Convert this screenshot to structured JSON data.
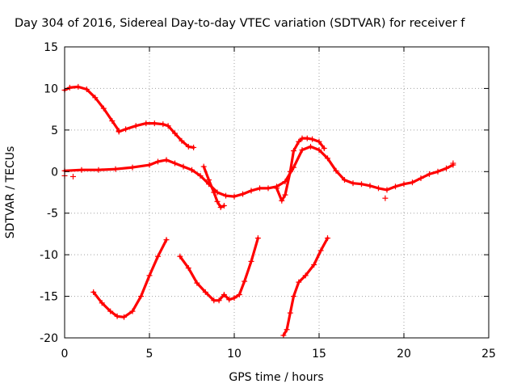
{
  "chart_data": {
    "type": "scatter",
    "title": "Day 304 of 2016, Sidereal Day-to-day VTEC variation (SDTVAR) for receiver f",
    "xlabel": "GPS time / hours",
    "ylabel": "SDTVAR / TECUs",
    "xlim": [
      0,
      25
    ],
    "ylim": [
      -20,
      15
    ],
    "xticks": [
      0,
      5,
      10,
      15,
      20,
      25
    ],
    "yticks": [
      -20,
      -15,
      -10,
      -5,
      0,
      5,
      10,
      15
    ],
    "grid": true,
    "marker": "+",
    "color": "#ff0000",
    "series": [
      {
        "x": [
          0,
          0.3,
          0.8,
          1.3,
          1.8,
          2.3,
          2.8,
          3.2
        ],
        "y": [
          9.8,
          10.1,
          10.2,
          9.9,
          8.9,
          7.6,
          6.1,
          4.9
        ]
      },
      {
        "x": [
          3.2,
          3.6,
          4.2,
          4.8,
          5.3,
          5.8,
          6.1,
          6.5,
          6.9,
          7.3,
          7.6
        ],
        "y": [
          4.8,
          5.1,
          5.5,
          5.8,
          5.8,
          5.7,
          5.5,
          4.6,
          3.7,
          3.0,
          2.9
        ]
      },
      {
        "x": [
          0,
          1,
          2,
          3,
          4,
          5,
          5.5,
          6,
          6.5,
          7,
          7.5,
          8,
          8.5,
          9,
          9.5,
          10,
          10.5,
          11,
          11.5,
          12,
          12.5,
          13,
          13.5,
          14,
          14.5,
          15,
          15.5,
          16,
          16.5,
          17,
          17.5,
          18,
          18.5,
          19,
          19.5,
          20,
          20.5,
          21,
          21.5,
          22,
          22.5,
          22.9
        ],
        "y": [
          0.1,
          0.2,
          0.2,
          0.3,
          0.5,
          0.8,
          1.2,
          1.4,
          1.0,
          0.6,
          0.2,
          -0.5,
          -1.5,
          -2.5,
          -2.9,
          -3.0,
          -2.7,
          -2.3,
          -2.0,
          -2.0,
          -1.8,
          -1.2,
          0.5,
          2.6,
          3.0,
          2.6,
          1.6,
          0.1,
          -1.0,
          -1.4,
          -1.5,
          -1.7,
          -2.0,
          -2.2,
          -1.8,
          -1.5,
          -1.3,
          -0.8,
          -0.3,
          0.0,
          0.4,
          0.8
        ]
      },
      {
        "x": [
          8.2,
          8.5,
          8.8,
          9.0,
          9.2,
          9.4
        ],
        "y": [
          0.6,
          -1.0,
          -2.5,
          -3.6,
          -4.3,
          -4.1
        ]
      },
      {
        "x": [
          12.5,
          12.8,
          13.0,
          13.3,
          13.5,
          13.8,
          14.0,
          14.3,
          14.6,
          15.0,
          15.3
        ],
        "y": [
          -2.0,
          -3.5,
          -2.8,
          0.0,
          2.5,
          3.6,
          4.0,
          4.0,
          3.9,
          3.6,
          2.8
        ]
      },
      {
        "x": [
          1.7,
          2.2,
          2.7,
          3.1,
          3.5,
          4.0,
          4.5,
          5.0,
          5.5,
          6.0
        ],
        "y": [
          -14.5,
          -15.8,
          -16.8,
          -17.4,
          -17.5,
          -16.8,
          -15.0,
          -12.5,
          -10.2,
          -8.2
        ]
      },
      {
        "x": [
          6.8,
          7.3,
          7.8,
          8.3,
          8.8,
          9.1,
          9.4,
          9.7,
          10.0,
          10.3,
          10.6,
          11.0,
          11.4
        ],
        "y": [
          -10.2,
          -11.6,
          -13.4,
          -14.5,
          -15.5,
          -15.5,
          -14.8,
          -15.4,
          -15.2,
          -14.8,
          -13.2,
          -10.8,
          -8.0
        ]
      },
      {
        "x": [
          12.9,
          13.1,
          13.3,
          13.5,
          13.8,
          14.2,
          14.7,
          15.1,
          15.5
        ],
        "y": [
          -19.7,
          -19.0,
          -17.0,
          -15.0,
          -13.3,
          -12.5,
          -11.2,
          -9.5,
          -8.0
        ]
      }
    ],
    "extra_points": [
      {
        "x": 0.0,
        "y": -0.5
      },
      {
        "x": 0.5,
        "y": -0.6
      },
      {
        "x": 18.9,
        "y": -3.2
      },
      {
        "x": 22.9,
        "y": 1.0
      }
    ]
  }
}
